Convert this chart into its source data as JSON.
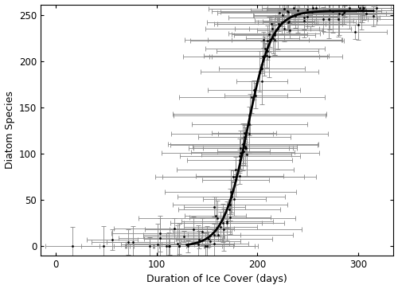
{
  "title": "",
  "xlabel": "Duration of Ice Cover (days)",
  "ylabel": "Diatom Species",
  "xlim": [
    -15,
    335
  ],
  "ylim": [
    -10,
    262
  ],
  "xticks": [
    0,
    100,
    200,
    300
  ],
  "yticks": [
    0,
    50,
    100,
    150,
    200,
    250
  ],
  "bg_color": "#ffffff",
  "point_color": "#000000",
  "errorbar_color": "#888888",
  "curve_color": "#000000",
  "curve_linewidth": 2.0,
  "errorbar_linewidth": 0.6,
  "point_size": 4,
  "capsize": 2,
  "capthick": 0.6
}
